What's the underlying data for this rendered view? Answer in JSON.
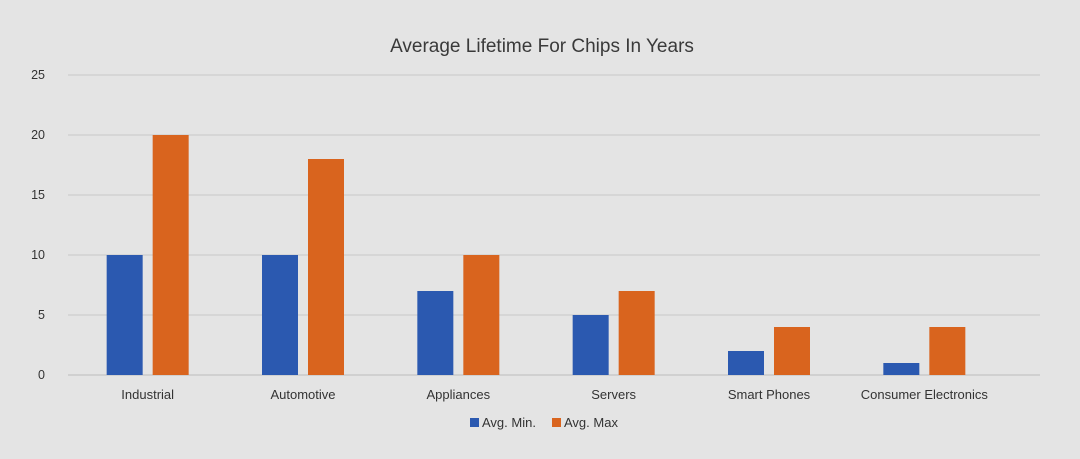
{
  "chart_data": {
    "type": "bar",
    "title": "Average Lifetime For Chips In Years",
    "xlabel": "",
    "ylabel": "",
    "categories": [
      "Industrial",
      "Automotive",
      "Appliances",
      "Servers",
      "Smart Phones",
      "Consumer Electronics"
    ],
    "series": [
      {
        "name": "Avg. Min.",
        "color": "#2b59b0",
        "values": [
          10,
          10,
          7,
          5,
          2,
          1
        ]
      },
      {
        "name": "Avg. Max",
        "color": "#d9641e",
        "values": [
          20,
          18,
          10,
          7,
          4,
          4
        ]
      }
    ],
    "ylim": [
      0,
      25
    ],
    "yticks": [
      "0",
      "5",
      "10",
      "15",
      "20",
      "25"
    ],
    "grid": true,
    "legend": "bottom-center"
  }
}
